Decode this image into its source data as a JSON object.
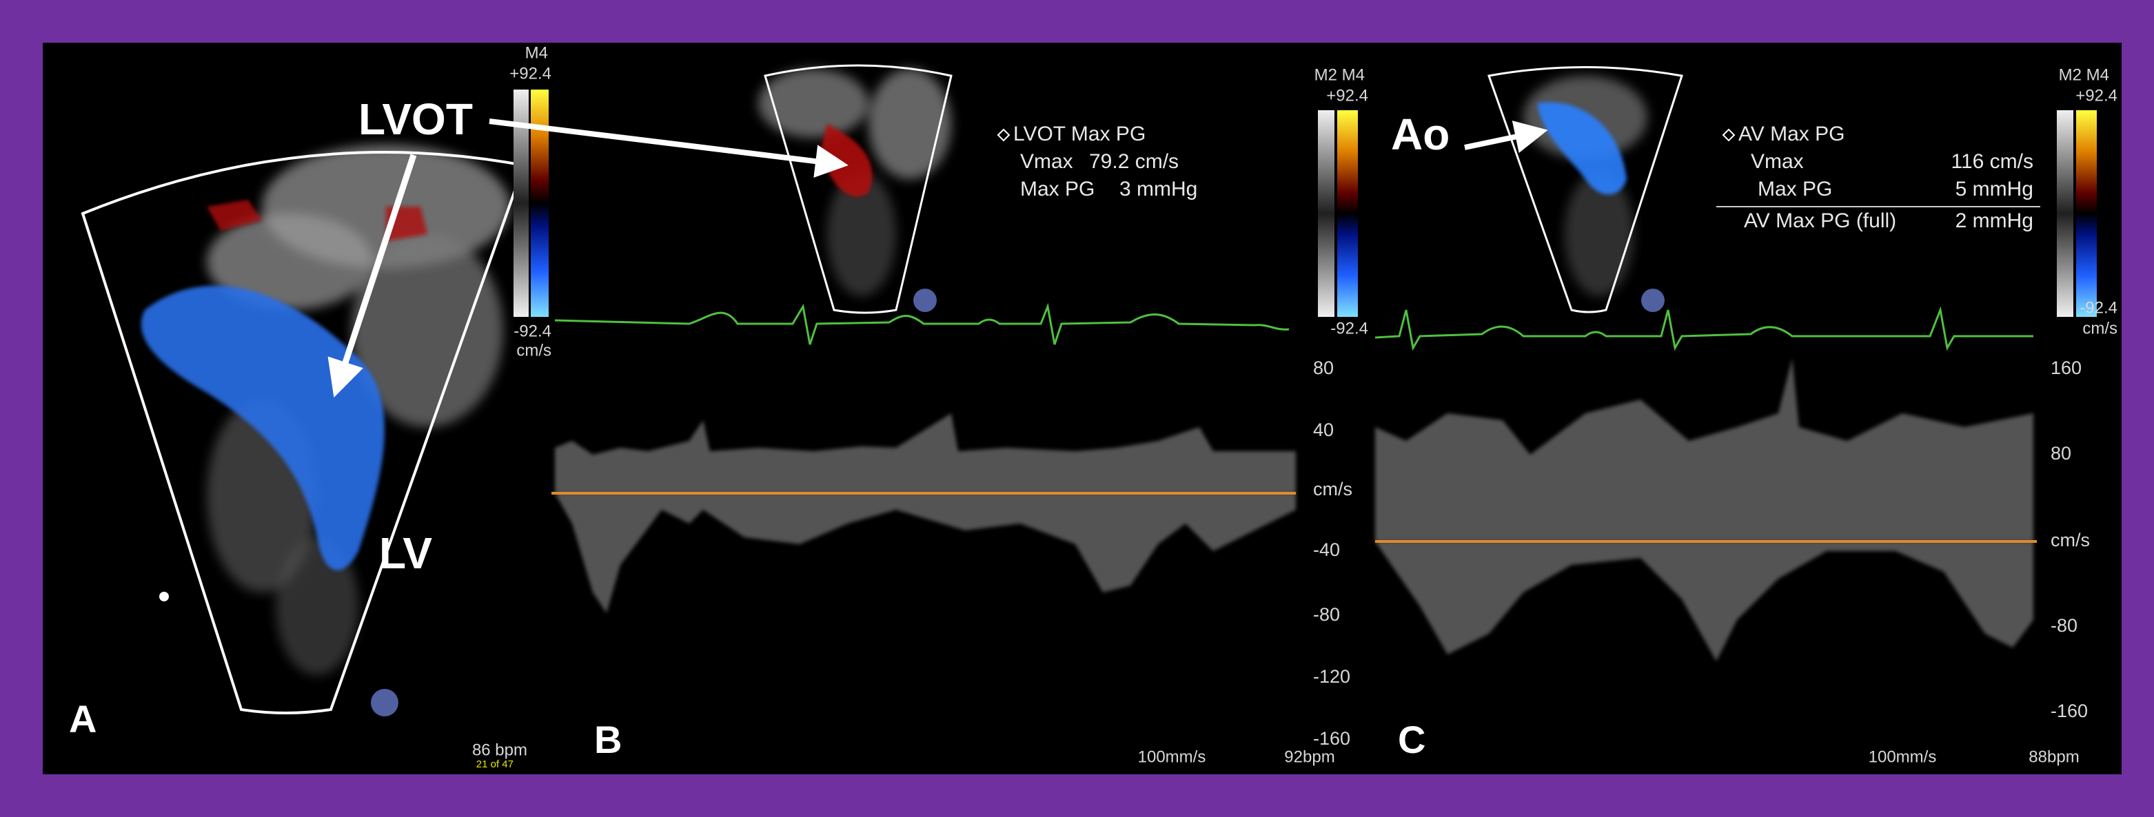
{
  "panel_a": {
    "label": "A",
    "arrow_label": "LVOT",
    "chamber_label": "LV",
    "color_bar": {
      "mode": "M4",
      "max": "+92.4",
      "min": "-92.4",
      "unit": "cm/s"
    },
    "heart_rate": "86 bpm",
    "frame": "21 of 47"
  },
  "panel_b": {
    "label": "B",
    "measurement": {
      "title": "LVOT Max PG",
      "rows": [
        [
          "Vmax",
          "79.2 cm/s"
        ],
        [
          "Max PG",
          "3 mmHg"
        ]
      ]
    },
    "color_bar": {
      "mode": "M2 M4",
      "max": "+92.4",
      "min": "-92.4",
      "unit": "cm/s"
    },
    "velocity_scale": [
      "80",
      "40",
      "cm/s",
      "-40",
      "-80",
      "-120",
      "-160"
    ],
    "sweep_speed": "100mm/s",
    "heart_rate": "92bpm"
  },
  "panel_c": {
    "label": "C",
    "arrow_label": "Ao",
    "measurement": {
      "title": "AV Max PG",
      "rows": [
        [
          "Vmax",
          "116 cm/s"
        ],
        [
          "Max PG",
          "5 mmHg"
        ],
        [
          "AV Max PG (full)",
          "2 mmHg"
        ]
      ]
    },
    "color_bar": {
      "mode": "M2 M4",
      "max": "+92.4",
      "min": "-92.4",
      "unit": "cm/s"
    },
    "velocity_scale": [
      "160",
      "80",
      "cm/s",
      "-80",
      "-160"
    ],
    "sweep_speed": "100mm/s",
    "heart_rate": "88bpm"
  }
}
